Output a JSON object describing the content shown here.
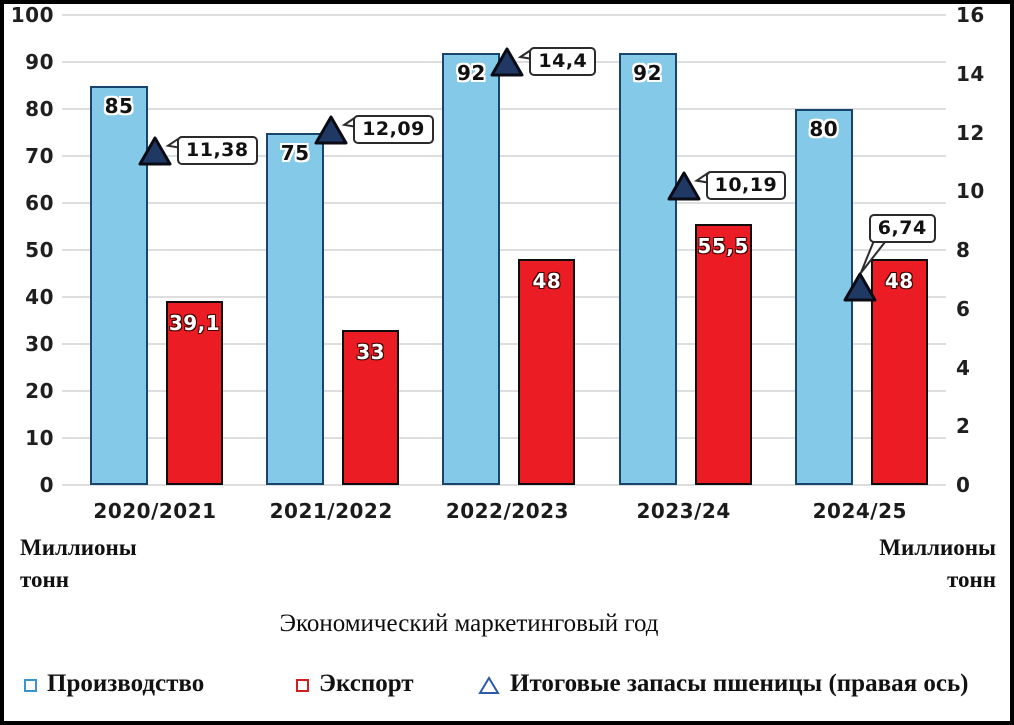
{
  "chart_data": {
    "type": "bar",
    "title": "",
    "xlabel": "Экономический маркетинговый год",
    "categories": [
      "2020/2021",
      "2021/2022",
      "2022/2023",
      "2023/24",
      "2024/25"
    ],
    "series": [
      {
        "name": "Производство",
        "type": "bar",
        "axis": "left",
        "fill": "#85C9E8",
        "border": "#17456B",
        "values": [
          85,
          75,
          92,
          92,
          80
        ],
        "labels": [
          "85",
          "75",
          "92",
          "92",
          "80"
        ]
      },
      {
        "name": "Экспорт",
        "type": "bar",
        "axis": "left",
        "fill": "#EC1C24",
        "border": "#0D0D0D",
        "values": [
          39.1,
          33,
          48,
          55.5,
          48
        ],
        "labels": [
          "39,1",
          "33",
          "48",
          "55,5",
          "48"
        ]
      },
      {
        "name": "Итоговые запасы пшеницы (правая ось)",
        "type": "triangle-marker",
        "axis": "right",
        "fill": "#1F3864",
        "border": "#0B0B15",
        "values": [
          11.38,
          12.09,
          14.4,
          10.19,
          6.74
        ],
        "labels": [
          "11,38",
          "12,09",
          "14,4",
          "10,19",
          "6,74"
        ],
        "callout_positions": [
          "right",
          "right",
          "right",
          "right",
          "above"
        ]
      }
    ],
    "left_axis": {
      "min": 0,
      "max": 100,
      "step": 10,
      "ticks": [
        "0",
        "10",
        "20",
        "30",
        "40",
        "50",
        "60",
        "70",
        "80",
        "90",
        "100"
      ],
      "title_lines": [
        "Миллионы",
        "тонн"
      ]
    },
    "right_axis": {
      "min": 0,
      "max": 16,
      "step": 2,
      "ticks": [
        "0",
        "2",
        "4",
        "6",
        "8",
        "10",
        "12",
        "14",
        "16"
      ],
      "title_lines": [
        "Миллионы",
        "тонн"
      ]
    },
    "grid": "horizontal",
    "gridline_color": "#DEDEDE",
    "callout_border_color": "#2B2B2B",
    "legend": {
      "position": "bottom",
      "items": [
        {
          "label": "Производство",
          "marker": "square-outline",
          "color": "#3B93D0"
        },
        {
          "label": "Экспорт",
          "marker": "square-outline",
          "color": "#CF1F1F"
        },
        {
          "label": "Итоговые запасы пшеницы (правая ось)",
          "marker": "triangle-outline",
          "color": "#2A5CAA"
        }
      ]
    }
  }
}
